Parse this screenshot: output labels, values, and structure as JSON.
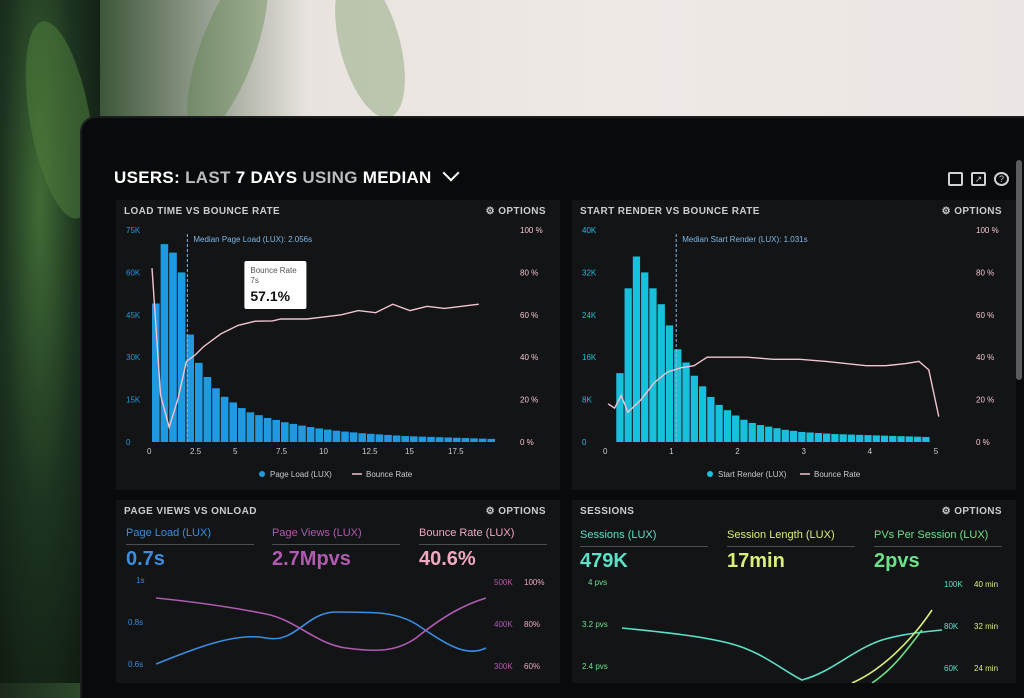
{
  "header": {
    "title_prefix": "USERS:",
    "range": "LAST",
    "days": "7 DAYS",
    "using": "USING",
    "stat": "MEDIAN"
  },
  "top_icons": [
    "monitor-icon",
    "share-icon",
    "help-icon"
  ],
  "panels": {
    "load_time": {
      "title": "LOAD TIME VS BOUNCE RATE",
      "options": "OPTIONS",
      "median_label": "Median Page Load (LUX): 2.056s",
      "tooltip": {
        "title": "Bounce Rate",
        "sub": "7s",
        "value": "57.1%"
      },
      "legend": [
        "Page Load (LUX)",
        "Bounce Rate"
      ]
    },
    "start_render": {
      "title": "START RENDER VS BOUNCE RATE",
      "options": "OPTIONS",
      "median_label": "Median Start Render (LUX): 1.031s",
      "legend": [
        "Start Render (LUX)",
        "Bounce Rate"
      ]
    },
    "page_views": {
      "title": "PAGE VIEWS VS ONLOAD",
      "options": "OPTIONS",
      "metrics": [
        {
          "label": "Page Load (LUX)",
          "value": "0.7s",
          "color": "#3a8ee0"
        },
        {
          "label": "Page Views (LUX)",
          "value": "2.7Mpvs",
          "color": "#b05ab0"
        },
        {
          "label": "Bounce Rate (LUX)",
          "value": "40.6%",
          "color": "#f0a8c0"
        }
      ],
      "y_left": [
        "1s",
        "0.8s",
        "0.6s"
      ],
      "y_mid": [
        "500K",
        "400K",
        "300K"
      ],
      "y_right": [
        "100%",
        "80%",
        "60%"
      ]
    },
    "sessions": {
      "title": "SESSIONS",
      "options": "OPTIONS",
      "metrics": [
        {
          "label": "Sessions (LUX)",
          "value": "479K",
          "color": "#5ee0c8"
        },
        {
          "label": "Session Length (LUX)",
          "value": "17min",
          "color": "#d8f07a"
        },
        {
          "label": "PVs Per Session (LUX)",
          "value": "2pvs",
          "color": "#6fe08a"
        }
      ],
      "y_left": [
        "4 pvs",
        "3.2 pvs",
        "2.4 pvs"
      ],
      "y_mid": [
        "100K",
        "80K",
        "60K"
      ],
      "y_right": [
        "40 min",
        "32 min",
        "24 min"
      ]
    }
  },
  "chart_data": [
    {
      "type": "bar",
      "title": "LOAD TIME VS BOUNCE RATE",
      "x_ticks": [
        "0",
        "2.5",
        "5",
        "7.5",
        "10",
        "12.5",
        "15",
        "17.5"
      ],
      "y_left_ticks": [
        "75K",
        "60K",
        "45K",
        "30K",
        "15K",
        "0"
      ],
      "y_right_ticks": [
        "100 %",
        "80 %",
        "60 %",
        "40 %",
        "20 %",
        "0 %"
      ],
      "ylim": [
        0,
        75000
      ],
      "x_range": [
        0,
        20
      ],
      "bar_width": 0.5,
      "median_x": 2.056,
      "bar_color": "#1f9ae0",
      "line_color": "#f2c4d0",
      "series": [
        {
          "name": "Page Load (LUX)",
          "x": [
            0,
            0.5,
            1,
            1.5,
            2,
            2.5,
            3,
            3.5,
            4,
            4.5,
            5,
            5.5,
            6,
            6.5,
            7,
            7.5,
            8,
            8.5,
            9,
            9.5,
            10,
            10.5,
            11,
            11.5,
            12,
            12.5,
            13,
            13.5,
            14,
            14.5,
            15,
            15.5,
            16,
            16.5,
            17,
            17.5,
            18,
            18.5,
            19,
            19.5
          ],
          "values": [
            49000,
            70000,
            67000,
            60000,
            38000,
            28000,
            23000,
            19000,
            16000,
            14000,
            12000,
            10500,
            9500,
            8500,
            7800,
            7000,
            6400,
            5800,
            5300,
            4800,
            4400,
            4000,
            3700,
            3400,
            3100,
            2900,
            2700,
            2500,
            2300,
            2100,
            2000,
            1900,
            1800,
            1700,
            1600,
            1500,
            1400,
            1300,
            1200,
            1100
          ]
        },
        {
          "name": "Bounce Rate",
          "x": [
            0,
            0.5,
            1,
            1.5,
            2,
            2.5,
            3,
            4,
            5,
            6,
            7,
            7.5,
            8,
            9,
            10,
            11,
            12,
            13,
            14,
            15,
            16,
            17,
            18,
            19
          ],
          "values": [
            82,
            22,
            7,
            20,
            38,
            41,
            45,
            51,
            55,
            57,
            57.1,
            58,
            58,
            58,
            59,
            60,
            62,
            61,
            65,
            62,
            64,
            63,
            64,
            65
          ]
        }
      ]
    },
    {
      "type": "bar",
      "title": "START RENDER VS BOUNCE RATE",
      "x_ticks": [
        "0",
        "1",
        "2",
        "3",
        "4",
        "5"
      ],
      "y_left_ticks": [
        "40K",
        "32K",
        "24K",
        "16K",
        "8K",
        "0"
      ],
      "y_right_ticks": [
        "100 %",
        "80 %",
        "60 %",
        "40 %",
        "20 %",
        "0 %"
      ],
      "ylim": [
        0,
        40000
      ],
      "x_range": [
        0,
        5.2
      ],
      "bar_width": 0.125,
      "median_x": 1.031,
      "bar_color": "#19c0dc",
      "line_color": "#f2c4d0",
      "series": [
        {
          "name": "Start Render (LUX)",
          "x": [
            0.125,
            0.25,
            0.375,
            0.5,
            0.625,
            0.75,
            0.875,
            1.0,
            1.125,
            1.25,
            1.375,
            1.5,
            1.625,
            1.75,
            1.875,
            2.0,
            2.125,
            2.25,
            2.375,
            2.5,
            2.625,
            2.75,
            2.875,
            3.0,
            3.125,
            3.25,
            3.375,
            3.5,
            3.625,
            3.75,
            3.875,
            4.0,
            4.125,
            4.25,
            4.375,
            4.5,
            4.625,
            4.75
          ],
          "values": [
            13000,
            29000,
            35000,
            32000,
            29000,
            26000,
            22000,
            17500,
            15000,
            12500,
            10500,
            8500,
            7000,
            6000,
            5000,
            4200,
            3600,
            3200,
            2900,
            2600,
            2300,
            2100,
            1900,
            1800,
            1700,
            1600,
            1500,
            1450,
            1400,
            1350,
            1300,
            1250,
            1200,
            1150,
            1100,
            1050,
            1000,
            950
          ]
        },
        {
          "name": "Bounce Rate",
          "x": [
            0,
            0.1,
            0.2,
            0.3,
            0.5,
            0.7,
            0.9,
            1.1,
            1.3,
            1.5,
            1.7,
            1.9,
            2.1,
            2.5,
            2.9,
            3.3,
            3.6,
            3.9,
            4.2,
            4.5,
            4.7,
            4.85,
            5
          ],
          "values": [
            18,
            16,
            22,
            14,
            20,
            28,
            33,
            35,
            36,
            40,
            40,
            40,
            40,
            39,
            39,
            38,
            37,
            36,
            36,
            37,
            38,
            34,
            12
          ]
        }
      ]
    }
  ]
}
